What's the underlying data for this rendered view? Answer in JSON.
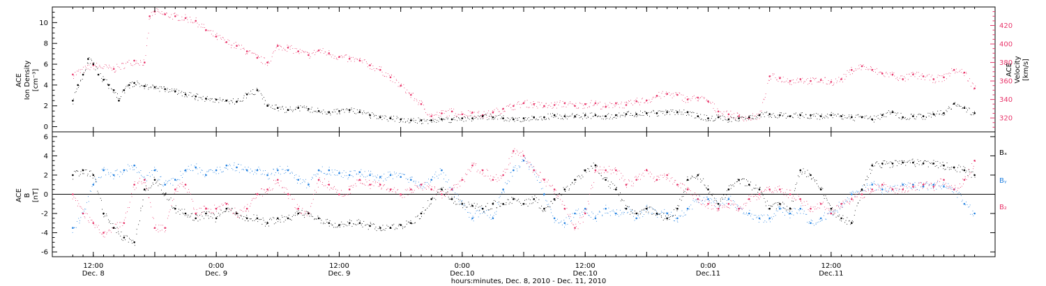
{
  "colors": {
    "density": "#000000",
    "velocity": "#e8356a",
    "bx": "#000000",
    "by": "#1f7fe0",
    "bz": "#e8356a",
    "axis": "#000000"
  },
  "chart_data": [
    {
      "type": "scatter",
      "panel": "top",
      "y_left_label_lines": [
        "ACE",
        "Ion Density",
        "[cm⁻³]"
      ],
      "y_right_label_lines": [
        "ACE",
        "Velocity",
        "[km/s]"
      ],
      "ylim_left": [
        -0.5,
        11.5
      ],
      "yticks_left": [
        0,
        2,
        4,
        6,
        8,
        10
      ],
      "ylim_right": [
        305,
        440
      ],
      "yticks_right": [
        320,
        340,
        360,
        380,
        400,
        420
      ],
      "series": [
        {
          "axis": "left",
          "x": [
            0,
            1,
            2,
            3,
            4,
            5,
            6,
            7,
            8,
            9,
            10,
            11,
            12,
            14,
            16,
            18,
            20,
            22,
            24,
            26,
            28,
            30,
            32,
            34,
            36,
            38,
            40,
            42,
            44,
            46,
            48,
            50,
            52,
            54,
            56,
            58,
            60,
            62,
            64,
            66,
            68,
            70,
            72,
            74,
            76,
            78,
            80,
            82,
            84,
            86,
            88,
            90,
            92,
            94,
            96,
            98,
            100,
            102,
            104,
            106,
            108,
            110,
            112,
            114,
            116,
            118,
            120,
            122,
            124,
            126,
            128,
            130,
            132,
            134,
            136,
            138,
            140,
            142,
            144,
            146,
            148,
            150,
            152,
            154,
            156,
            158,
            160,
            162,
            164,
            166,
            168,
            170,
            172,
            174,
            176
          ],
          "y": [
            2.5,
            4.0,
            5.0,
            6.5,
            6.0,
            5.0,
            4.5,
            4.0,
            3.5,
            2.5,
            3.5,
            4.0,
            4.2,
            3.9,
            3.8,
            3.6,
            3.4,
            3.1,
            2.9,
            2.7,
            2.6,
            2.5,
            2.4,
            3.1,
            3.5,
            2.0,
            1.8,
            1.6,
            1.8,
            1.7,
            1.5,
            1.4,
            1.5,
            1.6,
            1.4,
            1.1,
            0.9,
            0.8,
            0.7,
            0.6,
            0.6,
            0.6,
            0.7,
            0.7,
            0.8,
            0.8,
            1.0,
            0.9,
            0.8,
            0.7,
            0.8,
            0.9,
            0.9,
            1.1,
            1.0,
            1.0,
            1.1,
            1.1,
            1.0,
            1.1,
            1.2,
            1.2,
            1.3,
            1.3,
            1.4,
            1.4,
            1.4,
            1.0,
            0.8,
            0.9,
            0.7,
            0.8,
            0.9,
            1.1,
            1.2,
            1.1,
            1.0,
            1.1,
            1.1,
            1.0,
            1.1,
            1.0,
            0.9,
            0.9,
            0.7,
            1.1,
            1.4,
            0.9,
            1.0,
            1.0,
            1.2,
            1.3,
            2.2,
            1.8,
            1.3
          ]
        },
        {
          "axis": "right",
          "x": [
            0,
            4,
            8,
            12,
            14,
            15,
            16,
            18,
            20,
            22,
            24,
            26,
            28,
            30,
            32,
            34,
            36,
            38,
            40,
            42,
            44,
            46,
            48,
            50,
            52,
            54,
            56,
            58,
            60,
            62,
            64,
            66,
            68,
            70,
            72,
            74,
            76,
            78,
            80,
            82,
            84,
            86,
            88,
            90,
            92,
            94,
            96,
            98,
            100,
            102,
            104,
            106,
            108,
            110,
            112,
            114,
            116,
            118,
            120,
            122,
            124,
            126,
            128,
            130,
            132,
            134,
            136,
            138,
            140,
            142,
            144,
            146,
            148,
            150,
            152,
            154,
            156,
            158,
            160,
            162,
            164,
            166,
            168,
            170,
            172,
            174,
            176
          ],
          "y": [
            367,
            377,
            373,
            382,
            380,
            430,
            435,
            432,
            430,
            428,
            425,
            415,
            408,
            402,
            398,
            392,
            385,
            380,
            398,
            396,
            392,
            388,
            393,
            390,
            386,
            384,
            382,
            377,
            372,
            364,
            355,
            345,
            335,
            322,
            325,
            327,
            324,
            326,
            323,
            326,
            330,
            333,
            336,
            335,
            333,
            334,
            336,
            333,
            335,
            336,
            332,
            336,
            334,
            338,
            339,
            344,
            346,
            345,
            340,
            342,
            338,
            327,
            324,
            322,
            320,
            323,
            365,
            363,
            360,
            362,
            360,
            361,
            359,
            362,
            372,
            376,
            372,
            368,
            367,
            362,
            367,
            365,
            362,
            364,
            372,
            369,
            352
          ]
        }
      ]
    },
    {
      "type": "scatter",
      "panel": "bottom",
      "y_label_lines": [
        "ACE",
        "B",
        "[nT]"
      ],
      "ylim": [
        -6.5,
        6.5
      ],
      "yticks": [
        -6,
        -4,
        -2,
        0,
        2,
        4,
        6
      ],
      "zero_line": true,
      "legend": [
        "Bₓ",
        "Bᵧ",
        "B₂"
      ],
      "series": [
        {
          "key": "bx",
          "x": [
            0,
            2,
            4,
            6,
            8,
            10,
            12,
            14,
            16,
            18,
            20,
            22,
            24,
            26,
            28,
            30,
            32,
            34,
            36,
            38,
            40,
            42,
            44,
            46,
            48,
            50,
            52,
            54,
            56,
            58,
            60,
            62,
            64,
            66,
            68,
            70,
            72,
            74,
            76,
            78,
            80,
            82,
            84,
            86,
            88,
            90,
            92,
            94,
            96,
            98,
            100,
            102,
            104,
            106,
            108,
            110,
            112,
            114,
            116,
            118,
            120,
            122,
            124,
            126,
            128,
            130,
            132,
            134,
            136,
            138,
            140,
            142,
            144,
            146,
            148,
            150,
            152,
            154,
            156,
            158,
            160,
            162,
            164,
            166,
            168,
            170,
            172,
            174,
            176
          ],
          "y": [
            2.0,
            2.5,
            2.0,
            -2.0,
            -3.5,
            -4.5,
            -5.0,
            0.5,
            1.5,
            0.0,
            -1.5,
            -2.0,
            -2.5,
            -2.0,
            -2.5,
            -1.5,
            -2.0,
            -2.5,
            -2.5,
            -3.0,
            -2.5,
            -2.5,
            -2.0,
            -2.0,
            -2.5,
            -3.0,
            -3.2,
            -3.0,
            -3.0,
            -3.3,
            -3.5,
            -3.5,
            -3.2,
            -3.0,
            -2.0,
            -0.5,
            0.5,
            -0.5,
            -1.0,
            -1.2,
            -1.5,
            -1.0,
            -1.0,
            -0.5,
            -1.0,
            -0.5,
            -1.5,
            -0.5,
            0.5,
            1.5,
            2.5,
            3.0,
            1.5,
            0.5,
            -1.5,
            -2.0,
            -1.5,
            -2.0,
            -2.5,
            -1.5,
            1.5,
            2.0,
            0.5,
            -1.0,
            0.5,
            1.5,
            1.0,
            0.5,
            -1.5,
            -1.0,
            -1.5,
            2.5,
            2.0,
            0.5,
            -1.5,
            -2.5,
            -3.0,
            0.5,
            3.0,
            3.2,
            3.2,
            3.3,
            3.3,
            3.2,
            3.2,
            3.0,
            2.8,
            2.5,
            2.0
          ]
        },
        {
          "key": "by",
          "x": [
            0,
            2,
            4,
            6,
            8,
            10,
            12,
            14,
            16,
            18,
            20,
            22,
            24,
            26,
            28,
            30,
            32,
            34,
            36,
            38,
            40,
            42,
            44,
            46,
            48,
            50,
            52,
            54,
            56,
            58,
            60,
            62,
            64,
            66,
            68,
            70,
            72,
            74,
            76,
            78,
            80,
            82,
            84,
            86,
            88,
            90,
            92,
            94,
            96,
            98,
            100,
            102,
            104,
            106,
            108,
            110,
            112,
            114,
            116,
            118,
            120,
            122,
            124,
            126,
            128,
            130,
            132,
            134,
            136,
            138,
            140,
            142,
            144,
            146,
            148,
            150,
            152,
            154,
            156,
            158,
            160,
            162,
            164,
            166,
            168,
            170,
            172,
            174,
            176
          ],
          "y": [
            -3.5,
            -2.0,
            1.0,
            2.5,
            2.0,
            2.5,
            3.0,
            1.5,
            2.5,
            1.0,
            1.5,
            2.5,
            2.8,
            2.0,
            2.5,
            3.0,
            2.8,
            2.5,
            2.5,
            2.0,
            2.5,
            2.5,
            1.5,
            1.0,
            2.5,
            2.5,
            2.2,
            2.0,
            2.3,
            2.0,
            1.8,
            2.0,
            1.8,
            1.5,
            1.0,
            1.5,
            2.5,
            0.5,
            -1.0,
            -2.5,
            -1.5,
            -2.5,
            0.5,
            2.5,
            3.5,
            2.5,
            0.0,
            -2.5,
            -3.0,
            -2.0,
            -1.5,
            -2.5,
            -1.5,
            -2.0,
            -1.5,
            -2.5,
            -1.5,
            -2.0,
            -2.0,
            -2.5,
            -1.5,
            -0.5,
            -0.5,
            -1.0,
            -0.5,
            -1.5,
            -2.0,
            -2.5,
            -2.5,
            -1.5,
            -2.0,
            -1.5,
            -3.0,
            -2.5,
            -2.0,
            -1.0,
            0.0,
            0.5,
            1.0,
            0.5,
            0.5,
            1.0,
            1.0,
            0.8,
            1.0,
            0.8,
            0.5,
            -1.0,
            -2.0
          ]
        },
        {
          "key": "bz",
          "x": [
            0,
            2,
            4,
            6,
            8,
            10,
            12,
            14,
            16,
            18,
            20,
            22,
            24,
            26,
            28,
            30,
            32,
            34,
            36,
            38,
            40,
            42,
            44,
            46,
            48,
            50,
            52,
            54,
            56,
            58,
            60,
            62,
            64,
            66,
            68,
            70,
            72,
            74,
            76,
            78,
            80,
            82,
            84,
            86,
            88,
            90,
            92,
            94,
            96,
            98,
            100,
            102,
            104,
            106,
            108,
            110,
            112,
            114,
            116,
            118,
            120,
            122,
            124,
            126,
            128,
            130,
            132,
            134,
            136,
            138,
            140,
            142,
            144,
            146,
            148,
            150,
            152,
            154,
            156,
            158,
            160,
            162,
            164,
            166,
            168,
            170,
            172,
            174,
            176
          ],
          "y": [
            0.0,
            -2.0,
            -3.0,
            -4.0,
            -3.5,
            -3.0,
            1.0,
            1.5,
            -3.5,
            -3.5,
            0.5,
            1.0,
            -2.0,
            -1.5,
            -1.5,
            -1.0,
            -2.0,
            -1.5,
            0.0,
            0.5,
            1.5,
            0.0,
            -1.5,
            -2.0,
            1.5,
            1.0,
            0.0,
            0.5,
            1.5,
            1.0,
            1.0,
            0.5,
            0.0,
            0.5,
            1.0,
            0.5,
            0.0,
            0.5,
            1.5,
            3.0,
            2.5,
            1.5,
            2.0,
            4.5,
            4.0,
            2.5,
            1.5,
            0.5,
            -1.5,
            -3.5,
            -2.0,
            2.5,
            2.5,
            2.5,
            1.0,
            1.5,
            2.5,
            1.5,
            2.0,
            1.0,
            0.5,
            -0.5,
            -1.0,
            -1.5,
            -1.0,
            -1.5,
            -0.5,
            0.0,
            0.5,
            0.5,
            0.0,
            -0.5,
            -1.5,
            -1.0,
            -2.0,
            -1.0,
            -0.5,
            0.0,
            0.5,
            1.0,
            0.5,
            0.5,
            0.8,
            1.0,
            0.8,
            1.5,
            0.5,
            1.5,
            3.5
          ]
        }
      ]
    }
  ],
  "x_axis": {
    "xlim": [
      -4,
      180
    ],
    "ticks": [
      {
        "x": 4,
        "time": "12:00",
        "date": "Dec. 8"
      },
      {
        "x": 16,
        "time": "",
        "date": ""
      },
      {
        "x": 28,
        "time": "0:00",
        "date": "Dec. 9"
      },
      {
        "x": 40,
        "time": "",
        "date": ""
      },
      {
        "x": 52,
        "time": "12:00",
        "date": "Dec. 9"
      },
      {
        "x": 64,
        "time": "",
        "date": ""
      },
      {
        "x": 76,
        "time": "0:00",
        "date": "Dec.10"
      },
      {
        "x": 88,
        "time": "",
        "date": ""
      },
      {
        "x": 100,
        "time": "12:00",
        "date": "Dec.10"
      },
      {
        "x": 112,
        "time": "",
        "date": ""
      },
      {
        "x": 124,
        "time": "0:00",
        "date": "Dec.11"
      },
      {
        "x": 136,
        "time": "",
        "date": ""
      },
      {
        "x": 148,
        "time": "12:00",
        "date": "Dec.11"
      }
    ],
    "label": "hours:minutes, Dec. 8, 2010 - Dec. 11, 2010"
  }
}
